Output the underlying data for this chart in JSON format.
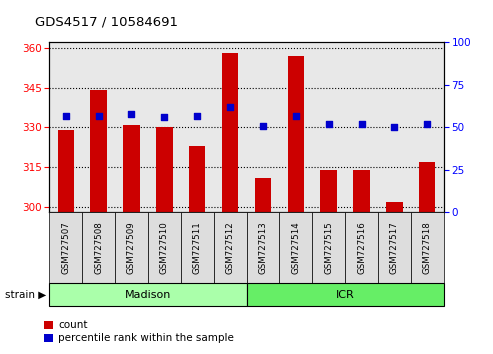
{
  "title": "GDS4517 / 10584691",
  "samples": [
    "GSM727507",
    "GSM727508",
    "GSM727509",
    "GSM727510",
    "GSM727511",
    "GSM727512",
    "GSM727513",
    "GSM727514",
    "GSM727515",
    "GSM727516",
    "GSM727517",
    "GSM727518"
  ],
  "counts": [
    329,
    344,
    331,
    330,
    323,
    358,
    311,
    357,
    314,
    314,
    302,
    317
  ],
  "percentiles": [
    57,
    57,
    58,
    56,
    57,
    62,
    51,
    57,
    52,
    52,
    50,
    52
  ],
  "groups": [
    "Madison",
    "Madison",
    "Madison",
    "Madison",
    "Madison",
    "Madison",
    "ICR",
    "ICR",
    "ICR",
    "ICR",
    "ICR",
    "ICR"
  ],
  "group_colors": {
    "Madison": "#AAFFAA",
    "ICR": "#66EE66"
  },
  "ylim_left": [
    298,
    362
  ],
  "ylim_right": [
    0,
    100
  ],
  "yticks_left": [
    300,
    315,
    330,
    345,
    360
  ],
  "yticks_right": [
    0,
    25,
    50,
    75,
    100
  ],
  "bar_color": "#CC0000",
  "dot_color": "#0000CC",
  "bar_width": 0.5,
  "legend_count_label": "count",
  "legend_pct_label": "percentile rank within the sample",
  "strain_label": "strain",
  "plot_bg": "#E8E8E8",
  "tick_box_bg": "#DDDDDD",
  "fig_bg": "#FFFFFF"
}
